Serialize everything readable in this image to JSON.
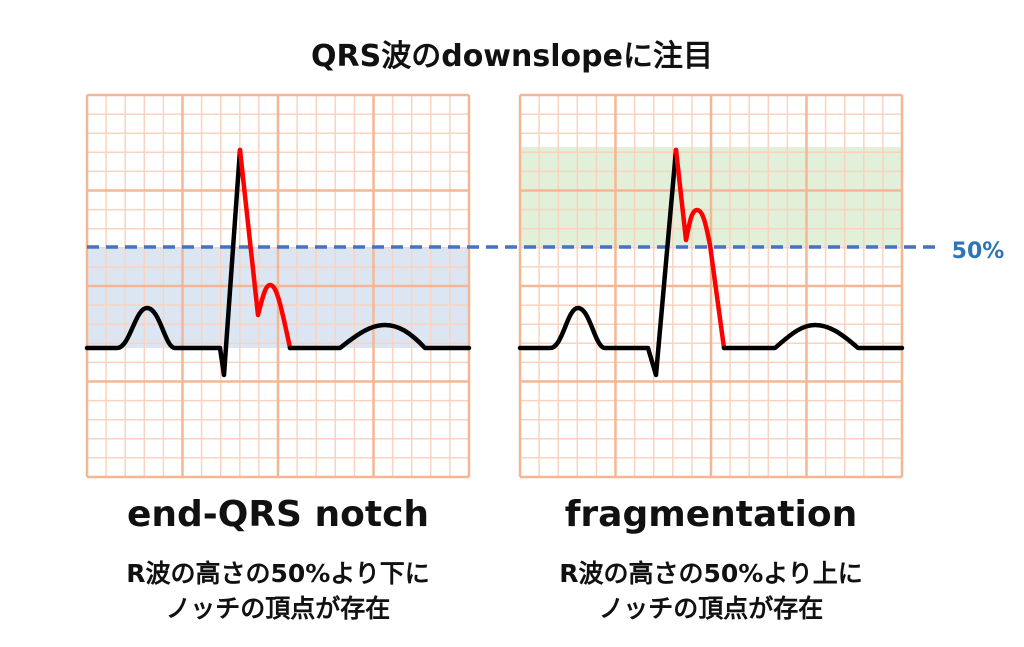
{
  "title": "QRS波のdownslopeに注目",
  "threshold_label": "50%",
  "panels": [
    {
      "title": "end-QRS notch",
      "description": [
        "R波の高さの50%より下に",
        "ノッチの頂点が存在"
      ]
    },
    {
      "title": "fragmentation",
      "description": [
        "R波の高さの50%より上に",
        "ノッチの頂点が存在"
      ]
    }
  ]
}
